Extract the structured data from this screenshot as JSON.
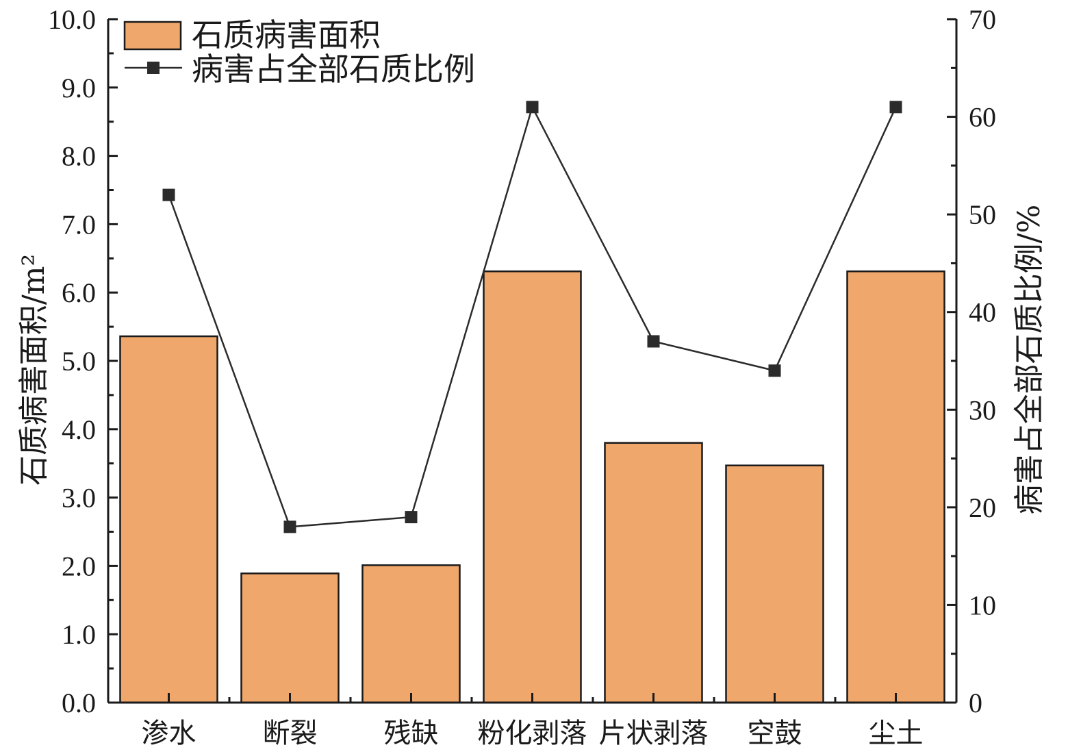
{
  "chart_data": {
    "type": "bar",
    "categories": [
      "渗水",
      "断裂",
      "残缺",
      "粉化剥落",
      "片状剥落",
      "空鼓",
      "尘土"
    ],
    "series": [
      {
        "name": "石质病害面积",
        "type": "bar",
        "axis": "left",
        "values": [
          5.36,
          1.89,
          2.01,
          6.31,
          3.8,
          3.47,
          6.31
        ]
      },
      {
        "name": "病害占全部石质比例",
        "type": "line",
        "axis": "right",
        "values": [
          52.0,
          18.0,
          19.0,
          61.0,
          37.0,
          34.0,
          61.0
        ]
      }
    ],
    "ylabel": "石质病害面积/m²",
    "ylabel_right": "病害占全部石质比例/%",
    "xlabel": "",
    "ylim": [
      0,
      10
    ],
    "ylim_right": [
      0,
      70
    ],
    "yticks": [
      "0.0",
      "1.0",
      "2.0",
      "3.0",
      "4.0",
      "5.0",
      "6.0",
      "7.0",
      "8.0",
      "9.0",
      "10.0"
    ],
    "yticks_right": [
      "0",
      "10",
      "20",
      "30",
      "40",
      "50",
      "60",
      "70"
    ],
    "grid": false,
    "legend_position": "top-left",
    "colors": {
      "bar_fill": "#efa76c",
      "bar_stroke": "#1a1a1a",
      "line": "#2b2b2b",
      "marker": "#2b2b2b"
    }
  }
}
